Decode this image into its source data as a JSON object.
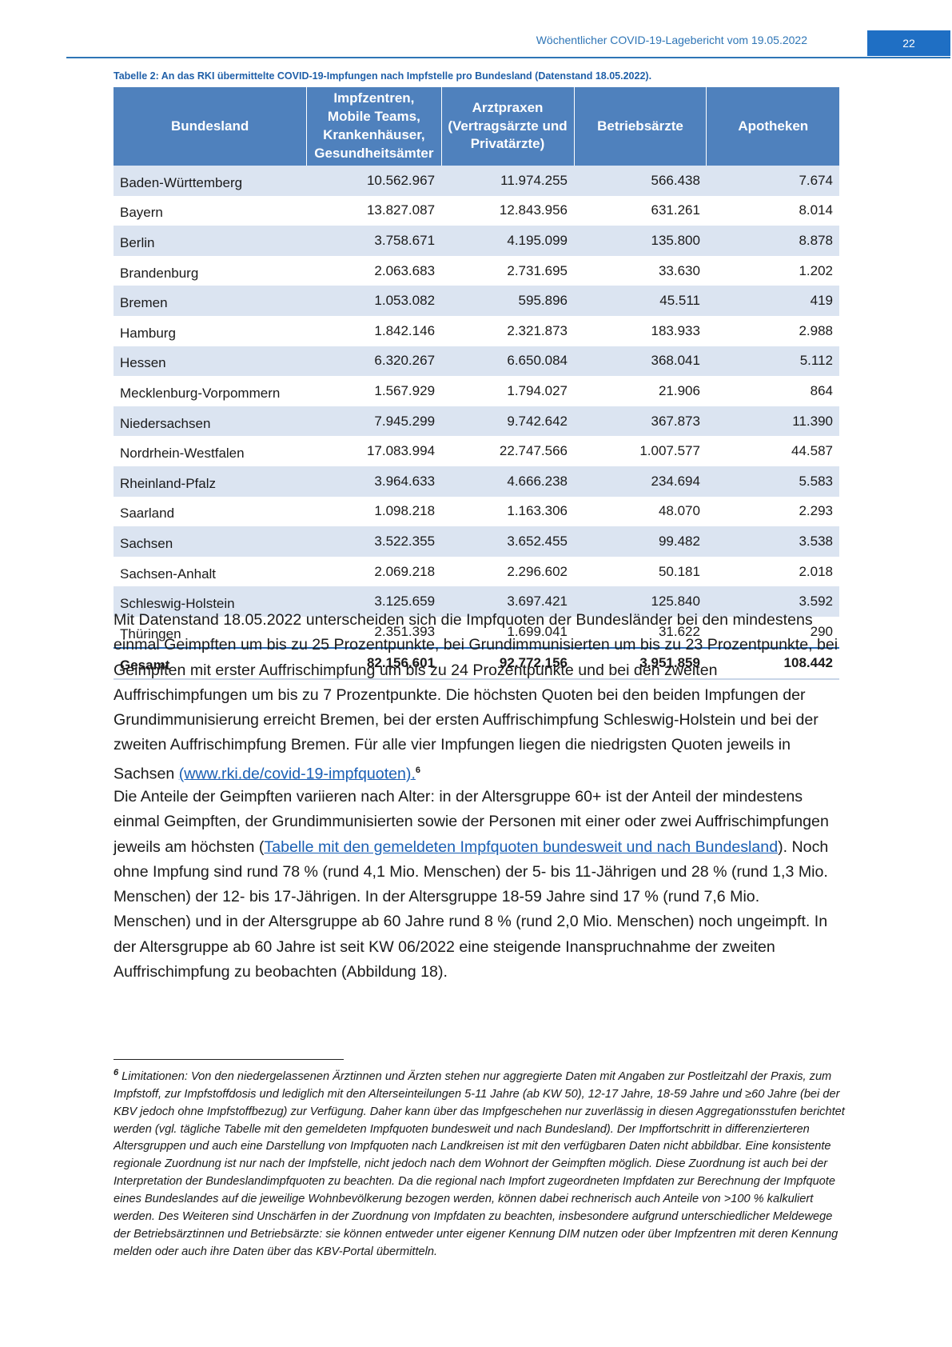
{
  "header": {
    "title": "Wöchentlicher COVID-19-Lagebericht vom 19.05.2022",
    "page_number": "22"
  },
  "table": {
    "caption": "Tabelle 2: An das RKI übermittelte COVID-19-Impfungen nach Impfstelle pro Bundesland (Datenstand 18.05.2022).",
    "headers": [
      "Bundesland",
      "Impfzentren, Mobile Teams, Krankenhäuser, Gesundheitsämter",
      "Arztpraxen (Vertragsärzte und Privatärzte)",
      "Betriebsärzte",
      "Apotheken"
    ],
    "rows": [
      [
        "Baden-Württemberg",
        "10.562.967",
        "11.974.255",
        "566.438",
        "7.674"
      ],
      [
        "Bayern",
        "13.827.087",
        "12.843.956",
        "631.261",
        "8.014"
      ],
      [
        "Berlin",
        "3.758.671",
        "4.195.099",
        "135.800",
        "8.878"
      ],
      [
        "Brandenburg",
        "2.063.683",
        "2.731.695",
        "33.630",
        "1.202"
      ],
      [
        "Bremen",
        "1.053.082",
        "595.896",
        "45.511",
        "419"
      ],
      [
        "Hamburg",
        "1.842.146",
        "2.321.873",
        "183.933",
        "2.988"
      ],
      [
        "Hessen",
        "6.320.267",
        "6.650.084",
        "368.041",
        "5.112"
      ],
      [
        "Mecklenburg-Vorpommern",
        "1.567.929",
        "1.794.027",
        "21.906",
        "864"
      ],
      [
        "Niedersachsen",
        "7.945.299",
        "9.742.642",
        "367.873",
        "11.390"
      ],
      [
        "Nordrhein-Westfalen",
        "17.083.994",
        "22.747.566",
        "1.007.577",
        "44.587"
      ],
      [
        "Rheinland-Pfalz",
        "3.964.633",
        "4.666.238",
        "234.694",
        "5.583"
      ],
      [
        "Saarland",
        "1.098.218",
        "1.163.306",
        "48.070",
        "2.293"
      ],
      [
        "Sachsen",
        "3.522.355",
        "3.652.455",
        "99.482",
        "3.538"
      ],
      [
        "Sachsen-Anhalt",
        "2.069.218",
        "2.296.602",
        "50.181",
        "2.018"
      ],
      [
        "Schleswig-Holstein",
        "3.125.659",
        "3.697.421",
        "125.840",
        "3.592"
      ],
      [
        "Thüringen",
        "2.351.393",
        "1.699.041",
        "31.622",
        "290"
      ]
    ],
    "total": [
      "Gesamt",
      "82.156.601",
      "92.772.156",
      "3.951.859",
      "108.442"
    ]
  },
  "paragraph1": {
    "text": "Mit Datenstand 18.05.2022 unterscheiden sich die Impfquoten der Bundesländer bei den mindestens einmal Geimpften um bis zu 25 Prozentpunkte, bei Grundimmunisierten um bis zu 23 Prozentpunkte, bei Geimpften mit erster Auffrischimpfung um bis zu 24 Prozentpunkte und bei den zweiten Auffrischimpfungen um bis zu 7 Prozentpunkte. Die höchsten Quoten bei den beiden Impfungen der Grundimmunisierung erreicht Bremen, bei der ersten Auffrischimpfung Schleswig-Holstein und bei der zweiten Auffrischimpfung Bremen. Für alle vier Impfungen liegen die niedrigsten Quoten jeweils in Sachsen ",
    "link": "(www.rki.de/covid-19-impfquoten).",
    "footnote_ref": "6"
  },
  "paragraph2": {
    "before": "Die Anteile der Geimpften variieren nach Alter: in der Altersgruppe 60+ ist der Anteil der mindestens einmal Geimpften, der Grundimmunisierten sowie der Personen mit einer oder zwei Auffrischimpfungen jeweils am höchsten (",
    "link": "Tabelle mit den gemeldeten Impfquoten bundesweit und nach Bundesland",
    "after": "). Noch ohne Impfung sind rund 78 % (rund 4,1 Mio. Menschen) der 5- bis 11-Jährigen und 28 % (rund 1,3 Mio. Menschen) der 12- bis 17-Jährigen. In der Altersgruppe 18-59 Jahre sind 17 % (rund 7,6 Mio. Menschen) und in der Altersgruppe ab 60 Jahre rund 8 % (rund 2,0 Mio. Menschen) noch ungeimpft. In der Altersgruppe ab 60 Jahre ist seit KW 06/2022 eine steigende Inanspruchnahme der zweiten Auffrischimpfung zu beobachten (Abbildung 18)."
  },
  "footnote": {
    "number": "6",
    "text": " Limitationen: Von den niedergelassenen Ärztinnen und Ärzten stehen nur aggregierte Daten mit Angaben zur Postleitzahl der Praxis, zum Impfstoff, zur Impfstoffdosis und lediglich mit den Alterseinteilungen 5-11 Jahre (ab KW 50), 12-17 Jahre, 18-59 Jahre und ≥60 Jahre (bei der KBV jedoch ohne Impfstoffbezug) zur Verfügung. Daher kann über das Impfgeschehen nur zuverlässig in diesen Aggregationsstufen berichtet werden (vgl. tägliche Tabelle mit den gemeldeten Impfquoten bundesweit und nach Bundesland). Der Impffortschritt in differenzierteren Altersgruppen und auch eine Darstellung von Impfquoten nach Landkreisen ist mit den verfügbaren Daten nicht abbildbar. Eine konsistente regionale Zuordnung ist nur nach der Impfstelle, nicht jedoch nach dem Wohnort der Geimpften möglich. Diese Zuordnung ist auch bei der Interpretation der Bundeslandimpfquoten zu beachten. Da die regional nach Impfort zugeordneten Impfdaten zur Berechnung der Impfquote eines Bundeslandes auf die jeweilige Wohnbevölkerung bezogen werden, können dabei rechnerisch auch Anteile von >100 % kalkuliert werden. Des Weiteren sind Unschärfen in der Zuordnung von Impfdaten zu beachten, insbesondere aufgrund unterschiedlicher Meldewege der Betriebsärztinnen und Betriebsärzte: sie können entweder unter eigener Kennung DIM nutzen oder über Impfzentren mit deren Kennung melden oder auch ihre Daten über das KBV-Portal übermitteln."
  }
}
